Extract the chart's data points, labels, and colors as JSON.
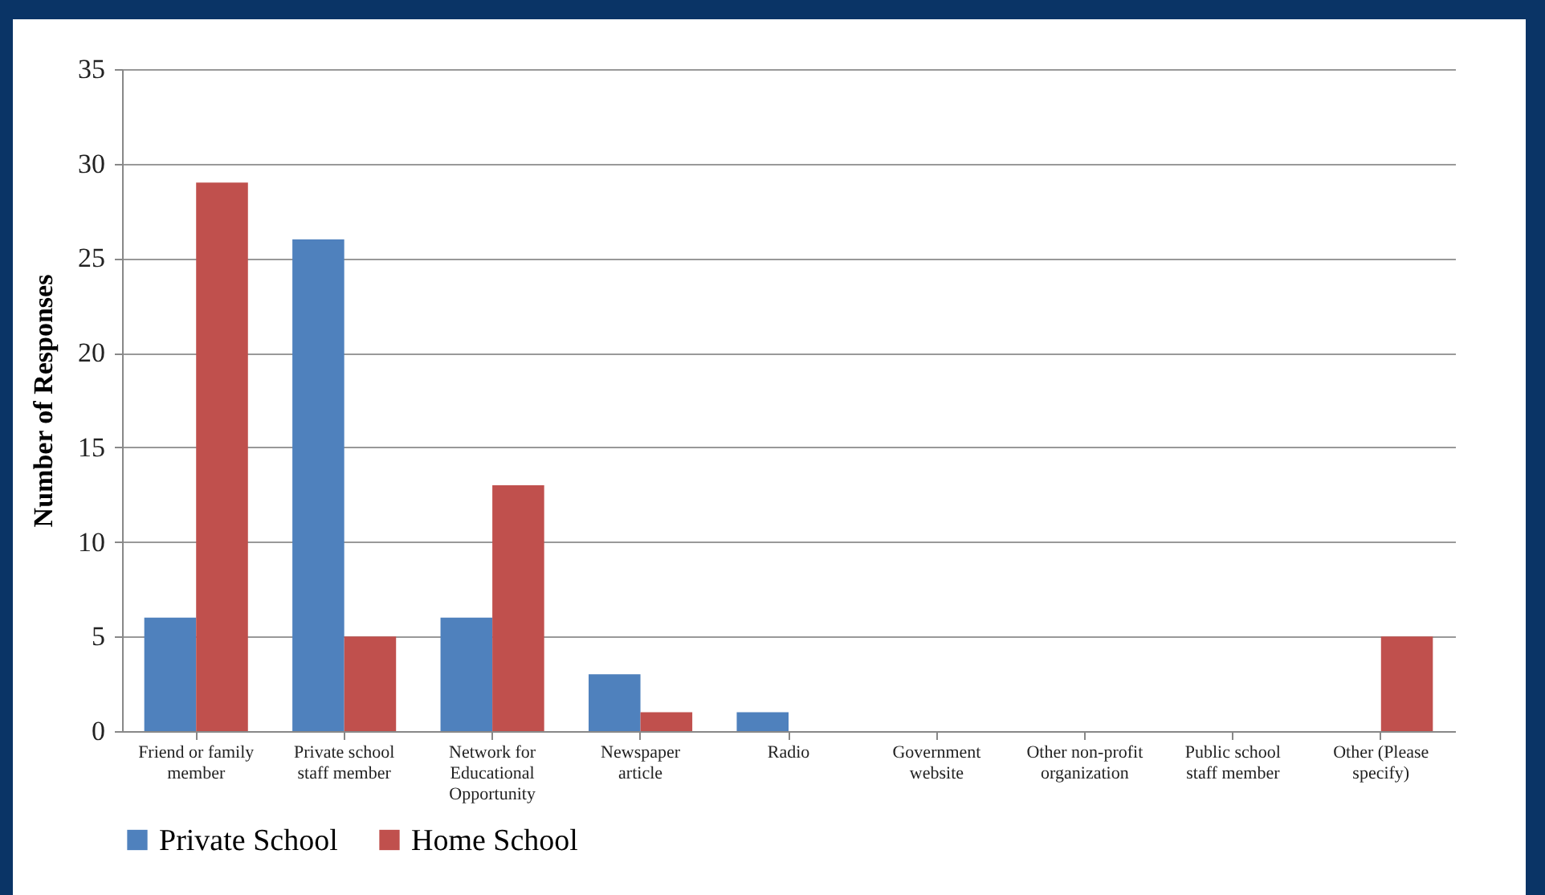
{
  "chart_data": {
    "type": "bar",
    "categories": [
      "Friend or family member",
      "Private school staff member",
      "Network for Educational Opportunity",
      "Newspaper article",
      "Radio",
      "Government website",
      "Other non-profit organization",
      "Public school staff member",
      "Other (Please specify)"
    ],
    "series": [
      {
        "name": "Private School",
        "color": "#4f81bd",
        "values": [
          6,
          26,
          6,
          3,
          1,
          0,
          0,
          0,
          0
        ]
      },
      {
        "name": "Home School",
        "color": "#c0504d",
        "values": [
          29,
          5,
          13,
          1,
          0,
          0,
          0,
          0,
          5
        ]
      }
    ],
    "ylabel": "Number of Responses",
    "ylim": [
      0,
      35
    ],
    "yticks": [
      0,
      5,
      10,
      15,
      20,
      25,
      30,
      35
    ],
    "grid": "y",
    "legend": "bottom"
  }
}
